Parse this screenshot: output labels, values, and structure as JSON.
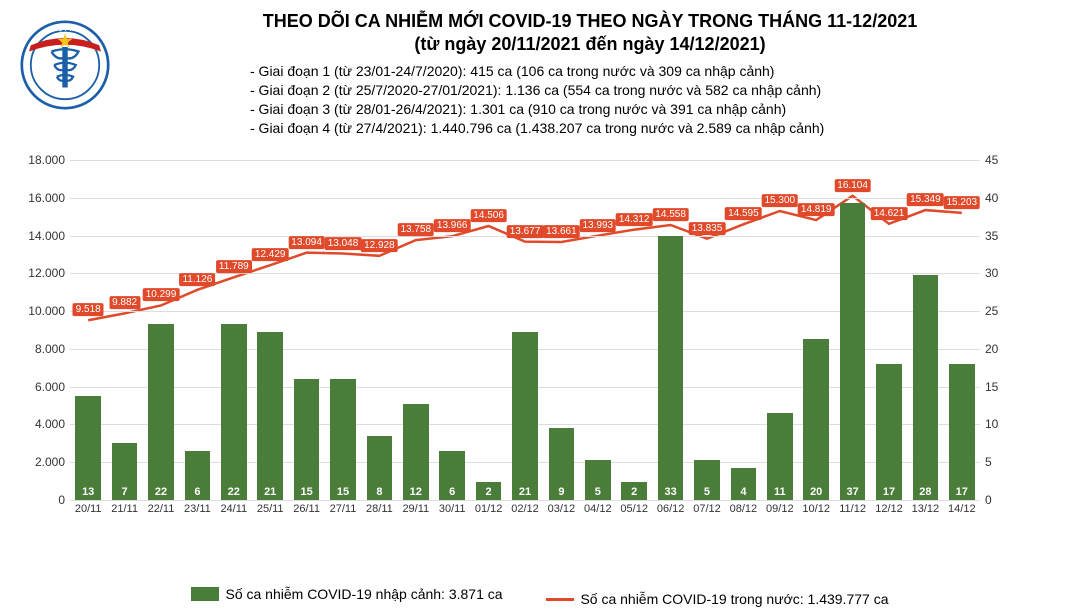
{
  "title_line1": "THEO DÕI CA NHIỄM MỚI COVID-19 THEO NGÀY TRONG THÁNG 11-12/2021",
  "title_line2": "(từ ngày 20/11/2021 đến ngày 14/12/2021)",
  "phases": [
    "- Giai đoạn 1 (từ 23/01-24/7/2020): 415 ca (106 ca trong nước và 309 ca nhập cảnh)",
    "- Giai đoạn 2 (từ 25/7/2020-27/01/2021): 1.136 ca (554 ca trong nước và 582 ca nhập cảnh)",
    "- Giai đoạn 3 (từ 28/01-26/4/2021): 1.301 ca (910 ca trong nước và 391 ca nhập cảnh)",
    "- Giai đoạn 4 (từ 27/4/2021): 1.440.796 ca (1.438.207 ca trong nước và 2.589 ca nhập cảnh)"
  ],
  "logo": {
    "top_text": "BỘ Y TẾ",
    "bottom_text": "MINISTRY OF HEALTH",
    "outer_color": "#1b5fa8",
    "ribbon_color": "#c81e1e",
    "star_color": "#f5c518"
  },
  "chart": {
    "type": "bar+line",
    "bar_color": "#4a7c3a",
    "line_color": "#e04a2a",
    "grid_color": "#dddddd",
    "background_color": "#ffffff",
    "text_color": "#333333",
    "left_axis": {
      "min": 0,
      "max": 18000,
      "step": 2000
    },
    "right_axis": {
      "min": 0,
      "max": 45,
      "step": 5
    },
    "categories": [
      "20/11",
      "21/11",
      "22/11",
      "23/11",
      "24/11",
      "25/11",
      "26/11",
      "27/11",
      "28/11",
      "29/11",
      "30/11",
      "01/12",
      "02/12",
      "03/12",
      "04/12",
      "05/12",
      "06/12",
      "07/12",
      "08/12",
      "09/12",
      "10/12",
      "11/12",
      "12/12",
      "13/12",
      "14/12"
    ],
    "bar_values": [
      13,
      7,
      22,
      6,
      22,
      21,
      15,
      15,
      8,
      12,
      6,
      2,
      21,
      9,
      5,
      2,
      33,
      5,
      4,
      11,
      20,
      37,
      17,
      28,
      17
    ],
    "bar_heights_left": [
      5500,
      3000,
      9300,
      2600,
      9300,
      8900,
      6400,
      6400,
      3400,
      5100,
      2600,
      900,
      8900,
      3800,
      2100,
      900,
      14000,
      2100,
      1700,
      4600,
      8500,
      15700,
      7200,
      11900,
      7200
    ],
    "line_values": [
      9518,
      9882,
      10299,
      11126,
      11789,
      12429,
      13094,
      13048,
      12928,
      13758,
      13966,
      14506,
      13677,
      13661,
      13993,
      14312,
      14558,
      13835,
      14595,
      15300,
      14819,
      16104,
      14621,
      15349,
      15203
    ],
    "line_labels": [
      "9.518",
      "9.882",
      "10.299",
      "11.126",
      "11.789",
      "12.429",
      "13.094",
      "13.048",
      "12.928",
      "13.758",
      "13.966",
      "14.506",
      "13.677",
      "13.661",
      "13.993",
      "14.312",
      "14.558",
      "13.835",
      "14.595",
      "15.300",
      "14.819",
      "16.104",
      "14.621",
      "15.349",
      "15.203"
    ]
  },
  "legend": {
    "bar_text": "Số ca nhiễm COVID-19 nhập cảnh: 3.871 ca",
    "line_text": "Số ca nhiễm COVID-19 trong nước: 1.439.777 ca"
  }
}
